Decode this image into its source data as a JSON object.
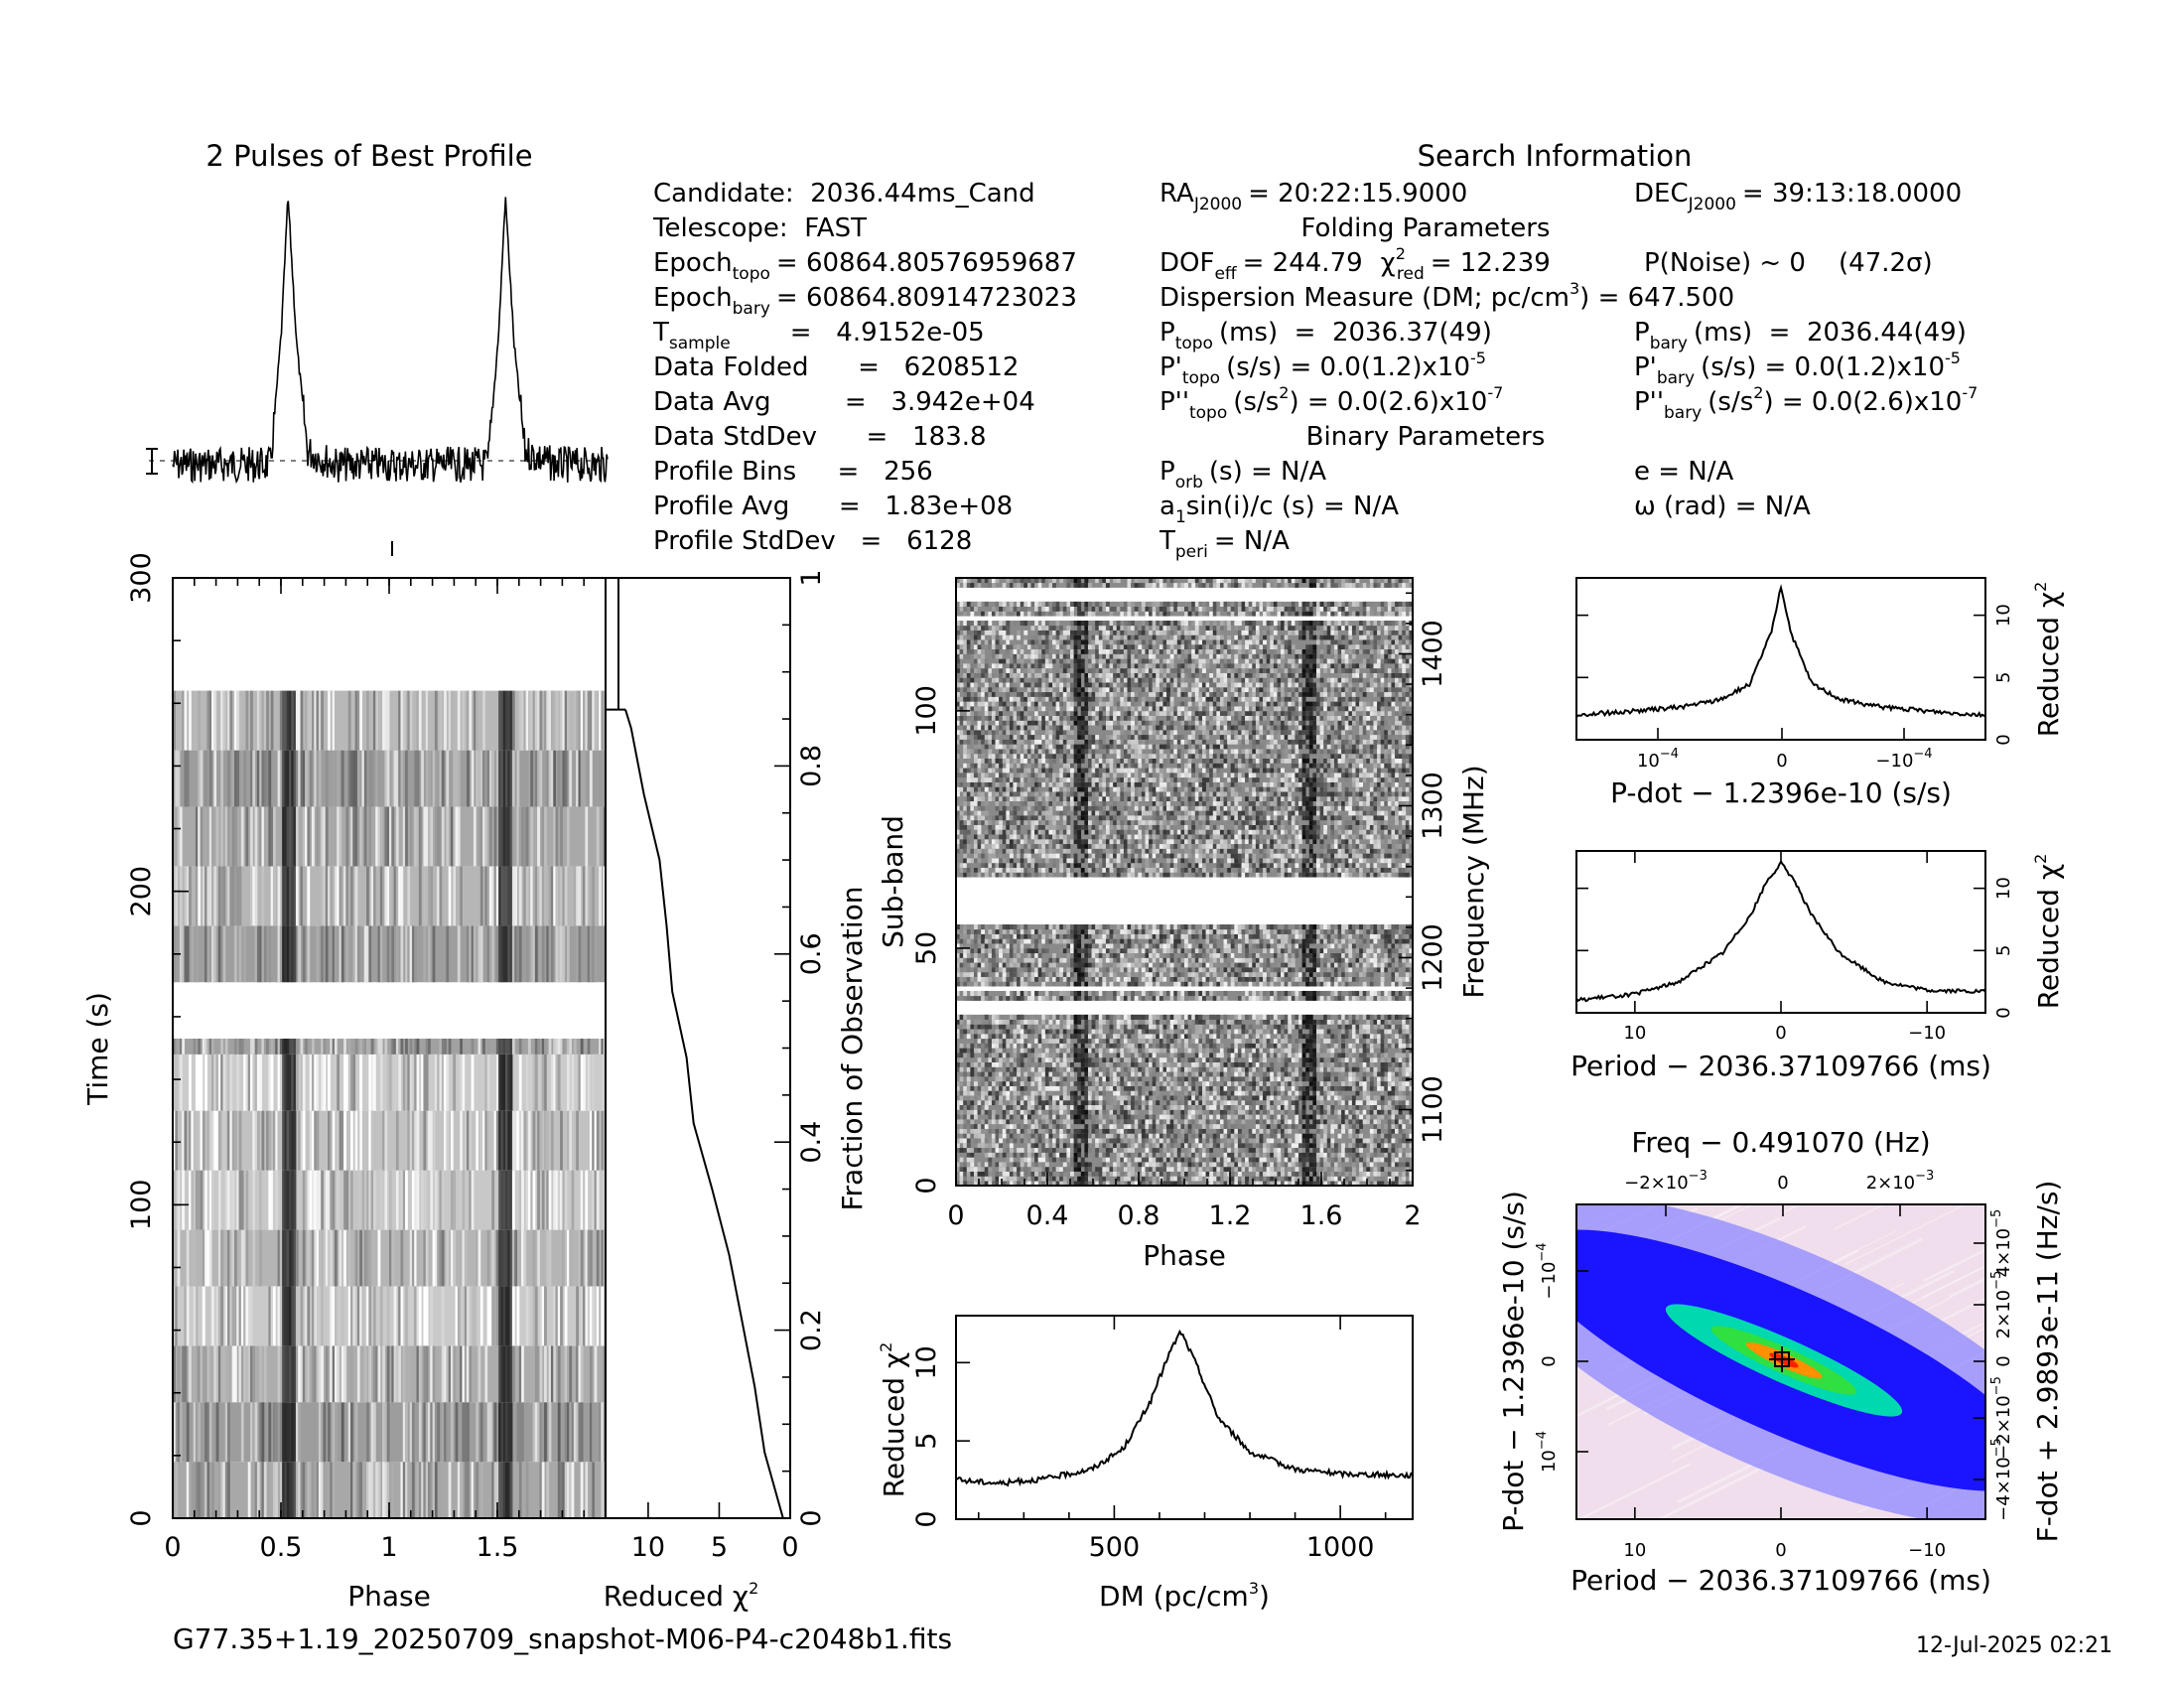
{
  "header": {
    "profile_title": "2 Pulses of Best Profile",
    "search_title": "Search Information",
    "folding_title": "Folding Parameters",
    "binary_title": "Binary Parameters",
    "filename": "G77.35+1.19_20250709_snapshot-M06-P4-c2048b1.fits",
    "timestamp": "12-Jul-2025 02:21"
  },
  "info": {
    "candidate": "Candidate:  2036.44ms_Cand",
    "telescope": "Telescope:  FAST",
    "epoch_topo": "= 60864.80576959687",
    "epoch_bary": "= 60864.80914723023",
    "t_sample": "=   4.9152e-05",
    "data_folded": "Data Folded      =   6208512",
    "data_avg": "Data Avg         =   3.942e+04",
    "data_stddev": "Data StdDev      =   183.8",
    "profile_bins": "Profile Bins     =   256",
    "profile_avg": "Profile Avg      =   1.83e+08",
    "profile_stddev": "Profile StdDev   =   6128",
    "ra": "= 20:22:15.9000",
    "dec": "= 39:13:18.0000",
    "dof": "= 244.79",
    "chi2red": "= 12.239",
    "pnoise": "P(Noise) ~ 0    (47.2σ)",
    "dm_line": "Dispersion Measure (DM; pc/cm",
    "dm_value": ") = 647.500",
    "ptopo": "(ms)  =  2036.37(49)",
    "pbary": "(ms)  =  2036.44(49)",
    "pdtopo": "(s/s) = 0.0(1.2)x10",
    "pdtopo_exp": "-5",
    "pdbary": "(s/s) = 0.0(1.2)x10",
    "pdbary_exp": "-5",
    "pddtopo": ") = 0.0(2.6)x10",
    "pddtopo_exp": "-7",
    "pddbary": ") = 0.0(2.6)x10",
    "pddbary_exp": "-7",
    "porb": "(s) = N/A",
    "ecc": "e = N/A",
    "a1sini": "sin(i)/c (s) = N/A",
    "omega": "ω (rad) = N/A",
    "tperi": "= N/A"
  },
  "colors": {
    "ink": "#000000",
    "paper": "#ffffff",
    "contour_low": "#f4e0ee",
    "contour_mid": "#1f3dff",
    "contour_high": "#ff3000"
  },
  "chart_data": [
    {
      "type": "line",
      "title": "2 Pulses of Best Profile",
      "x": [
        0.0,
        0.25,
        0.45,
        0.5,
        0.53,
        0.57,
        0.62,
        0.75,
        1.0,
        1.25,
        1.45,
        1.5,
        1.53,
        1.57,
        1.62,
        1.75,
        2.0
      ],
      "y": [
        0.0,
        0.0,
        0.0,
        0.5,
        1.0,
        0.45,
        0.05,
        0.0,
        0.0,
        0.0,
        0.0,
        0.5,
        1.0,
        0.45,
        0.05,
        0.0,
        0.0
      ]
    },
    {
      "type": "heatmap",
      "name": "time-phase",
      "xlabel": "Phase",
      "ylabel": "Time (s)",
      "xlim": [
        0,
        2
      ],
      "ylim": [
        0,
        300
      ],
      "xticks": [
        "0",
        "0.5",
        "1",
        "1.5"
      ],
      "yticks": [
        "0",
        "100",
        "200",
        "300"
      ],
      "right_axis_label": "Fraction of Observation",
      "right_ticks": [
        "0",
        "0.2",
        "0.4",
        "0.6",
        "0.8",
        "1"
      ]
    },
    {
      "type": "line",
      "name": "chi2-vs-time",
      "xlabel": "Reduced χ",
      "xlim": [
        13,
        0
      ],
      "xticks": [
        "10",
        "5",
        "0"
      ],
      "fraction": [
        0,
        0.07,
        0.14,
        0.21,
        0.28,
        0.35,
        0.42,
        0.49,
        0.56,
        0.63,
        0.7,
        0.77,
        0.84,
        0.86
      ],
      "chi2": [
        0.5,
        1.8,
        2.5,
        3.4,
        4.3,
        5.5,
        6.8,
        7.3,
        8.3,
        8.7,
        9.2,
        10.3,
        11.2,
        11.6
      ]
    },
    {
      "type": "heatmap",
      "name": "subband-phase",
      "xlabel": "Phase",
      "ylabel": "Sub-band",
      "right_axis_label": "Frequency (MHz)",
      "xlim": [
        0,
        2
      ],
      "ylim": [
        0,
        128
      ],
      "xticks": [
        "0",
        "0.4",
        "0.8",
        "1.2",
        "1.6",
        "2"
      ],
      "yticks": [
        "0",
        "50",
        "100"
      ],
      "freq_ticks": [
        "1100",
        "1200",
        "1300",
        "1400"
      ]
    },
    {
      "type": "line",
      "name": "dm-curve",
      "xlabel": "DM (pc/cm",
      "ylabel": "Reduced χ",
      "xlim": [
        150,
        1160
      ],
      "ylim": [
        0,
        13
      ],
      "xticks": [
        "500",
        "1000"
      ],
      "yticks": [
        "0",
        "5",
        "10"
      ],
      "x": [
        150,
        250,
        350,
        450,
        520,
        580,
        620,
        647,
        680,
        730,
        800,
        900,
        1000,
        1160
      ],
      "y": [
        2.5,
        2.3,
        2.6,
        3.2,
        4.5,
        7.5,
        10.5,
        12.0,
        10.0,
        6.5,
        4.3,
        3.2,
        2.9,
        2.8
      ]
    },
    {
      "type": "line",
      "name": "pdot-curve",
      "xlabel": "P-dot − 1.2396e-10 (s/s)",
      "ylabel": "Reduced χ",
      "xticks_top": [
        "10",
        "0",
        "−10"
      ],
      "yticks": [
        "0",
        "5",
        "10"
      ],
      "x": [
        -1,
        -0.8,
        -0.5,
        -0.3,
        -0.15,
        -0.05,
        0.0,
        0.05,
        0.15,
        0.3,
        0.5,
        0.8,
        1
      ],
      "y": [
        2.0,
        2.2,
        2.6,
        3.2,
        4.5,
        8.5,
        12.3,
        8.5,
        4.5,
        3.2,
        2.6,
        2.2,
        2.0
      ]
    },
    {
      "type": "line",
      "name": "period-curve",
      "xlabel": "Period − 2036.37109766 (ms)",
      "ylabel": "Reduced χ",
      "xticks": [
        "10",
        "0",
        "−10"
      ],
      "yticks": [
        "0",
        "5",
        "10"
      ],
      "x": [
        14,
        10,
        7,
        4,
        2,
        1,
        0,
        -1,
        -2,
        -4,
        -7,
        -10,
        -14
      ],
      "y": [
        1.0,
        1.5,
        2.5,
        4.8,
        8.0,
        10.5,
        12.0,
        10.5,
        8.0,
        4.8,
        2.5,
        1.8,
        1.7
      ]
    },
    {
      "type": "heatmap",
      "name": "p-pdot-plane",
      "xlabel": "Period − 2036.37109766 (ms)",
      "ylabel": "P-dot − 1.2396e-10 (s/s)",
      "top_label": "Freq − 0.491070 (Hz)",
      "right_label": "F-dot + 2.9893e-11 (Hz/s)",
      "xticks": [
        "10",
        "0",
        "−10"
      ],
      "top_ticks": [
        "−2×10",
        "0",
        "2×10"
      ],
      "top_ticks_exp": "−3"
    }
  ]
}
